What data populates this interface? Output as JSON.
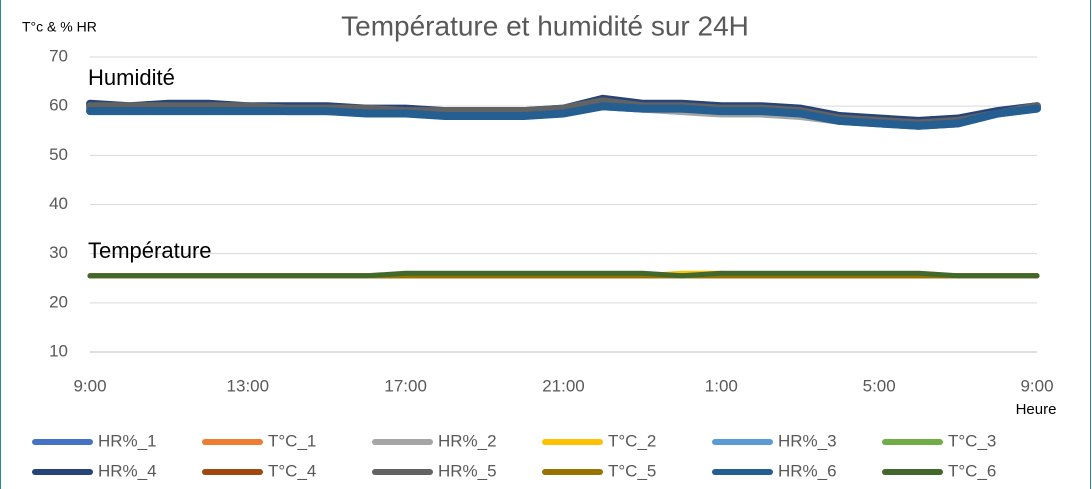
{
  "chart_data": {
    "type": "line",
    "title": "Température et humidité sur 24H",
    "y_label": "T°c & % HR",
    "x_label": "Heure",
    "annotations": [
      "Humidité",
      "Température"
    ],
    "categories": [
      "9:00",
      null,
      null,
      null,
      "13:00",
      null,
      null,
      null,
      "17:00",
      null,
      null,
      null,
      "21:00",
      null,
      null,
      null,
      "1:00",
      null,
      null,
      null,
      "5:00",
      null,
      null,
      null,
      "9:00"
    ],
    "ylim": [
      10,
      70
    ],
    "yticks": [
      10,
      20,
      30,
      40,
      50,
      60,
      70
    ],
    "grid": true,
    "legend": "bottom",
    "series": [
      {
        "name": "HR%_1",
        "color": "#4472c4",
        "values": [
          60,
          59.5,
          60,
          60,
          59.5,
          59.5,
          59.5,
          59,
          59,
          58.5,
          58.5,
          58.5,
          59,
          60.5,
          60,
          60,
          59.5,
          59.5,
          59,
          57.5,
          57,
          56.5,
          57,
          58.5,
          60
        ]
      },
      {
        "name": "T°C_1",
        "color": "#ed7d31",
        "values": [
          25.5,
          25.5,
          25.5,
          25.5,
          25.5,
          25.5,
          25.5,
          25.5,
          25.5,
          25.5,
          25.5,
          25.5,
          25.5,
          25.5,
          25.5,
          25.5,
          25.5,
          25.5,
          25.5,
          25.5,
          25.5,
          25.5,
          25.5,
          25.5,
          25.5
        ]
      },
      {
        "name": "HR%_2",
        "color": "#a5a5a5",
        "values": [
          60,
          59.5,
          59.5,
          59.5,
          59.5,
          59.5,
          59,
          59,
          59,
          58.5,
          58.5,
          58.5,
          59,
          60,
          59.5,
          59,
          58.5,
          58.5,
          58,
          57,
          56.5,
          56,
          56.5,
          58.5,
          60
        ]
      },
      {
        "name": "T°C_2",
        "color": "#ffc000",
        "values": [
          25.5,
          25.5,
          25.5,
          25.5,
          25.5,
          25.5,
          25.5,
          25.5,
          25.5,
          25.5,
          25.5,
          25.5,
          25.5,
          25.5,
          25.5,
          26,
          26,
          25.5,
          25.5,
          25.5,
          25.5,
          25.5,
          25.5,
          25.5,
          25.5
        ]
      },
      {
        "name": "HR%_3",
        "color": "#5b9bd5",
        "values": [
          59.5,
          59.5,
          59.5,
          59.5,
          59.5,
          59,
          59,
          59,
          58.5,
          58.5,
          58.5,
          58.5,
          58.5,
          60,
          59.5,
          59.5,
          59,
          59,
          58.5,
          57,
          56.5,
          56,
          56.5,
          58.5,
          59.5
        ]
      },
      {
        "name": "T°C_3",
        "color": "#70ad47",
        "values": [
          25.5,
          25.5,
          25.5,
          25.5,
          25.5,
          25.5,
          25.5,
          25.5,
          25.5,
          25.5,
          25.5,
          25.5,
          25.5,
          25.5,
          25.5,
          25.5,
          25.5,
          25.5,
          25.5,
          25.5,
          25.5,
          25.5,
          25.5,
          25.5,
          25.5
        ]
      },
      {
        "name": "HR%_4",
        "color": "#264478",
        "values": [
          60.5,
          60,
          60.5,
          60.5,
          60,
          60,
          60,
          59.5,
          59.5,
          59,
          59,
          59,
          59.5,
          61.5,
          60.5,
          60.5,
          60,
          60,
          59.5,
          58,
          57.5,
          57,
          57.5,
          59,
          60
        ]
      },
      {
        "name": "T°C_4",
        "color": "#9e480e",
        "values": [
          25.5,
          25.5,
          25.5,
          25.5,
          25.5,
          25.5,
          25.5,
          25.5,
          25.5,
          25.5,
          25.5,
          25.5,
          25.5,
          25.5,
          25.5,
          25.5,
          25.5,
          25.5,
          25.5,
          25.5,
          25.5,
          25.5,
          25.5,
          25.5,
          25.5
        ]
      },
      {
        "name": "HR%_5",
        "color": "#636363",
        "values": [
          60,
          60,
          60,
          60,
          60,
          59.5,
          59.5,
          59.5,
          59,
          59,
          59,
          59,
          59.5,
          61,
          60,
          60,
          59.5,
          59.5,
          59,
          57.5,
          57,
          56.5,
          57,
          58.5,
          60
        ]
      },
      {
        "name": "T°C_5",
        "color": "#997300",
        "values": [
          25.5,
          25.5,
          25.5,
          25.5,
          25.5,
          25.5,
          25.5,
          25.5,
          25.5,
          25.5,
          25.5,
          25.5,
          25.5,
          25.5,
          25.5,
          25.5,
          25.5,
          25.5,
          25.5,
          25.5,
          25.5,
          25.5,
          25.5,
          25.5,
          25.5
        ]
      },
      {
        "name": "HR%_6",
        "color": "#255e91",
        "values": [
          59,
          59,
          59,
          59,
          59,
          59,
          59,
          58.5,
          58.5,
          58,
          58,
          58,
          58.5,
          60,
          59.5,
          59.5,
          59,
          59,
          58.5,
          57,
          56.5,
          56,
          56.5,
          58.5,
          59.5
        ]
      },
      {
        "name": "T°C_6",
        "color": "#43682b",
        "values": [
          25.5,
          25.5,
          25.5,
          25.5,
          25.5,
          25.5,
          25.5,
          25.5,
          26,
          26,
          26,
          26,
          26,
          26,
          26,
          25.5,
          26,
          26,
          26,
          26,
          26,
          26,
          25.5,
          25.5,
          25.5
        ]
      }
    ]
  }
}
